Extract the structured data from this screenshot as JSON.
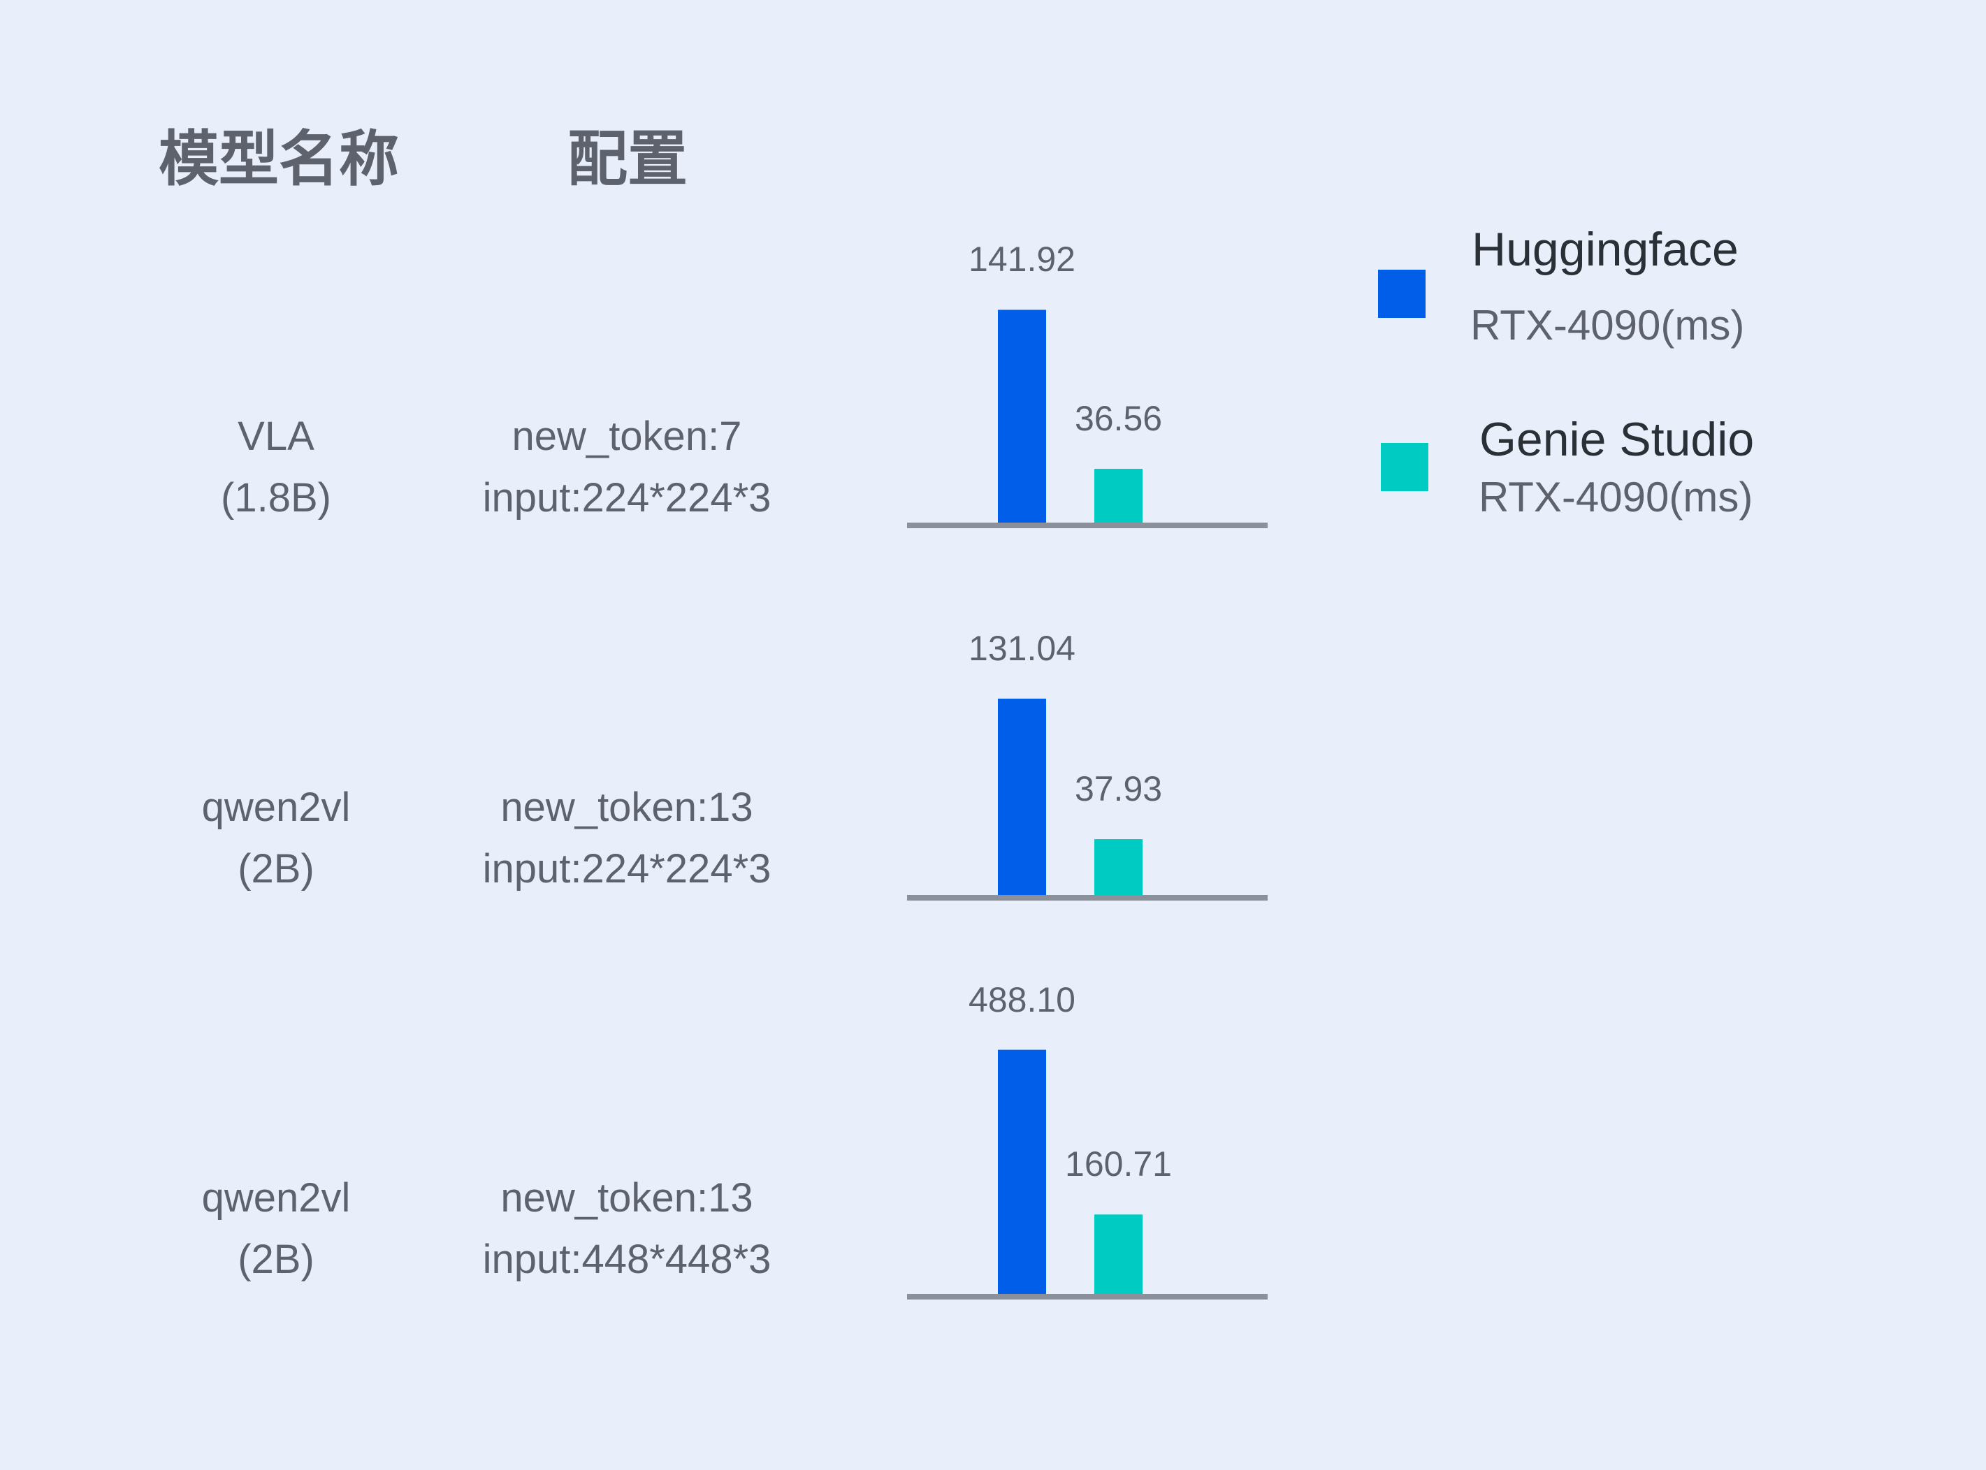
{
  "headers": {
    "model": "模型名称",
    "config": "配置"
  },
  "legend": [
    {
      "name": "Huggingface",
      "sub": "RTX-4090(ms)",
      "color": "#005ee9"
    },
    {
      "name": "Genie Studio",
      "sub": "RTX-4090(ms)",
      "color": "#00cbc3"
    }
  ],
  "rows": [
    {
      "model": "VLA",
      "size": "(1.8B)",
      "config1": "new_token:7",
      "config2": "input:224*224*3"
    },
    {
      "model": "qwen2vl",
      "size": "(2B)",
      "config1": "new_token:13",
      "config2": "input:224*224*3"
    },
    {
      "model": "qwen2vl",
      "size": "(2B)",
      "config1": "new_token:13",
      "config2": "input:448*448*3"
    }
  ],
  "chart_data": {
    "type": "bar",
    "categories": [
      "VLA (1.8B) new_token:7 input:224*224*3",
      "qwen2vl (2B) new_token:13 input:224*224*3",
      "qwen2vl (2B) new_token:13 input:448*448*3"
    ],
    "series": [
      {
        "name": "Huggingface RTX-4090(ms)",
        "values": [
          141.92,
          131.04,
          488.1
        ],
        "labels": [
          "141.92",
          "131.04",
          "488.10"
        ]
      },
      {
        "name": "Genie Studio RTX-4090(ms)",
        "values": [
          36.56,
          37.93,
          160.71
        ],
        "labels": [
          "36.56",
          "37.93",
          "160.71"
        ]
      }
    ],
    "grid": false,
    "legend": "top-right"
  }
}
